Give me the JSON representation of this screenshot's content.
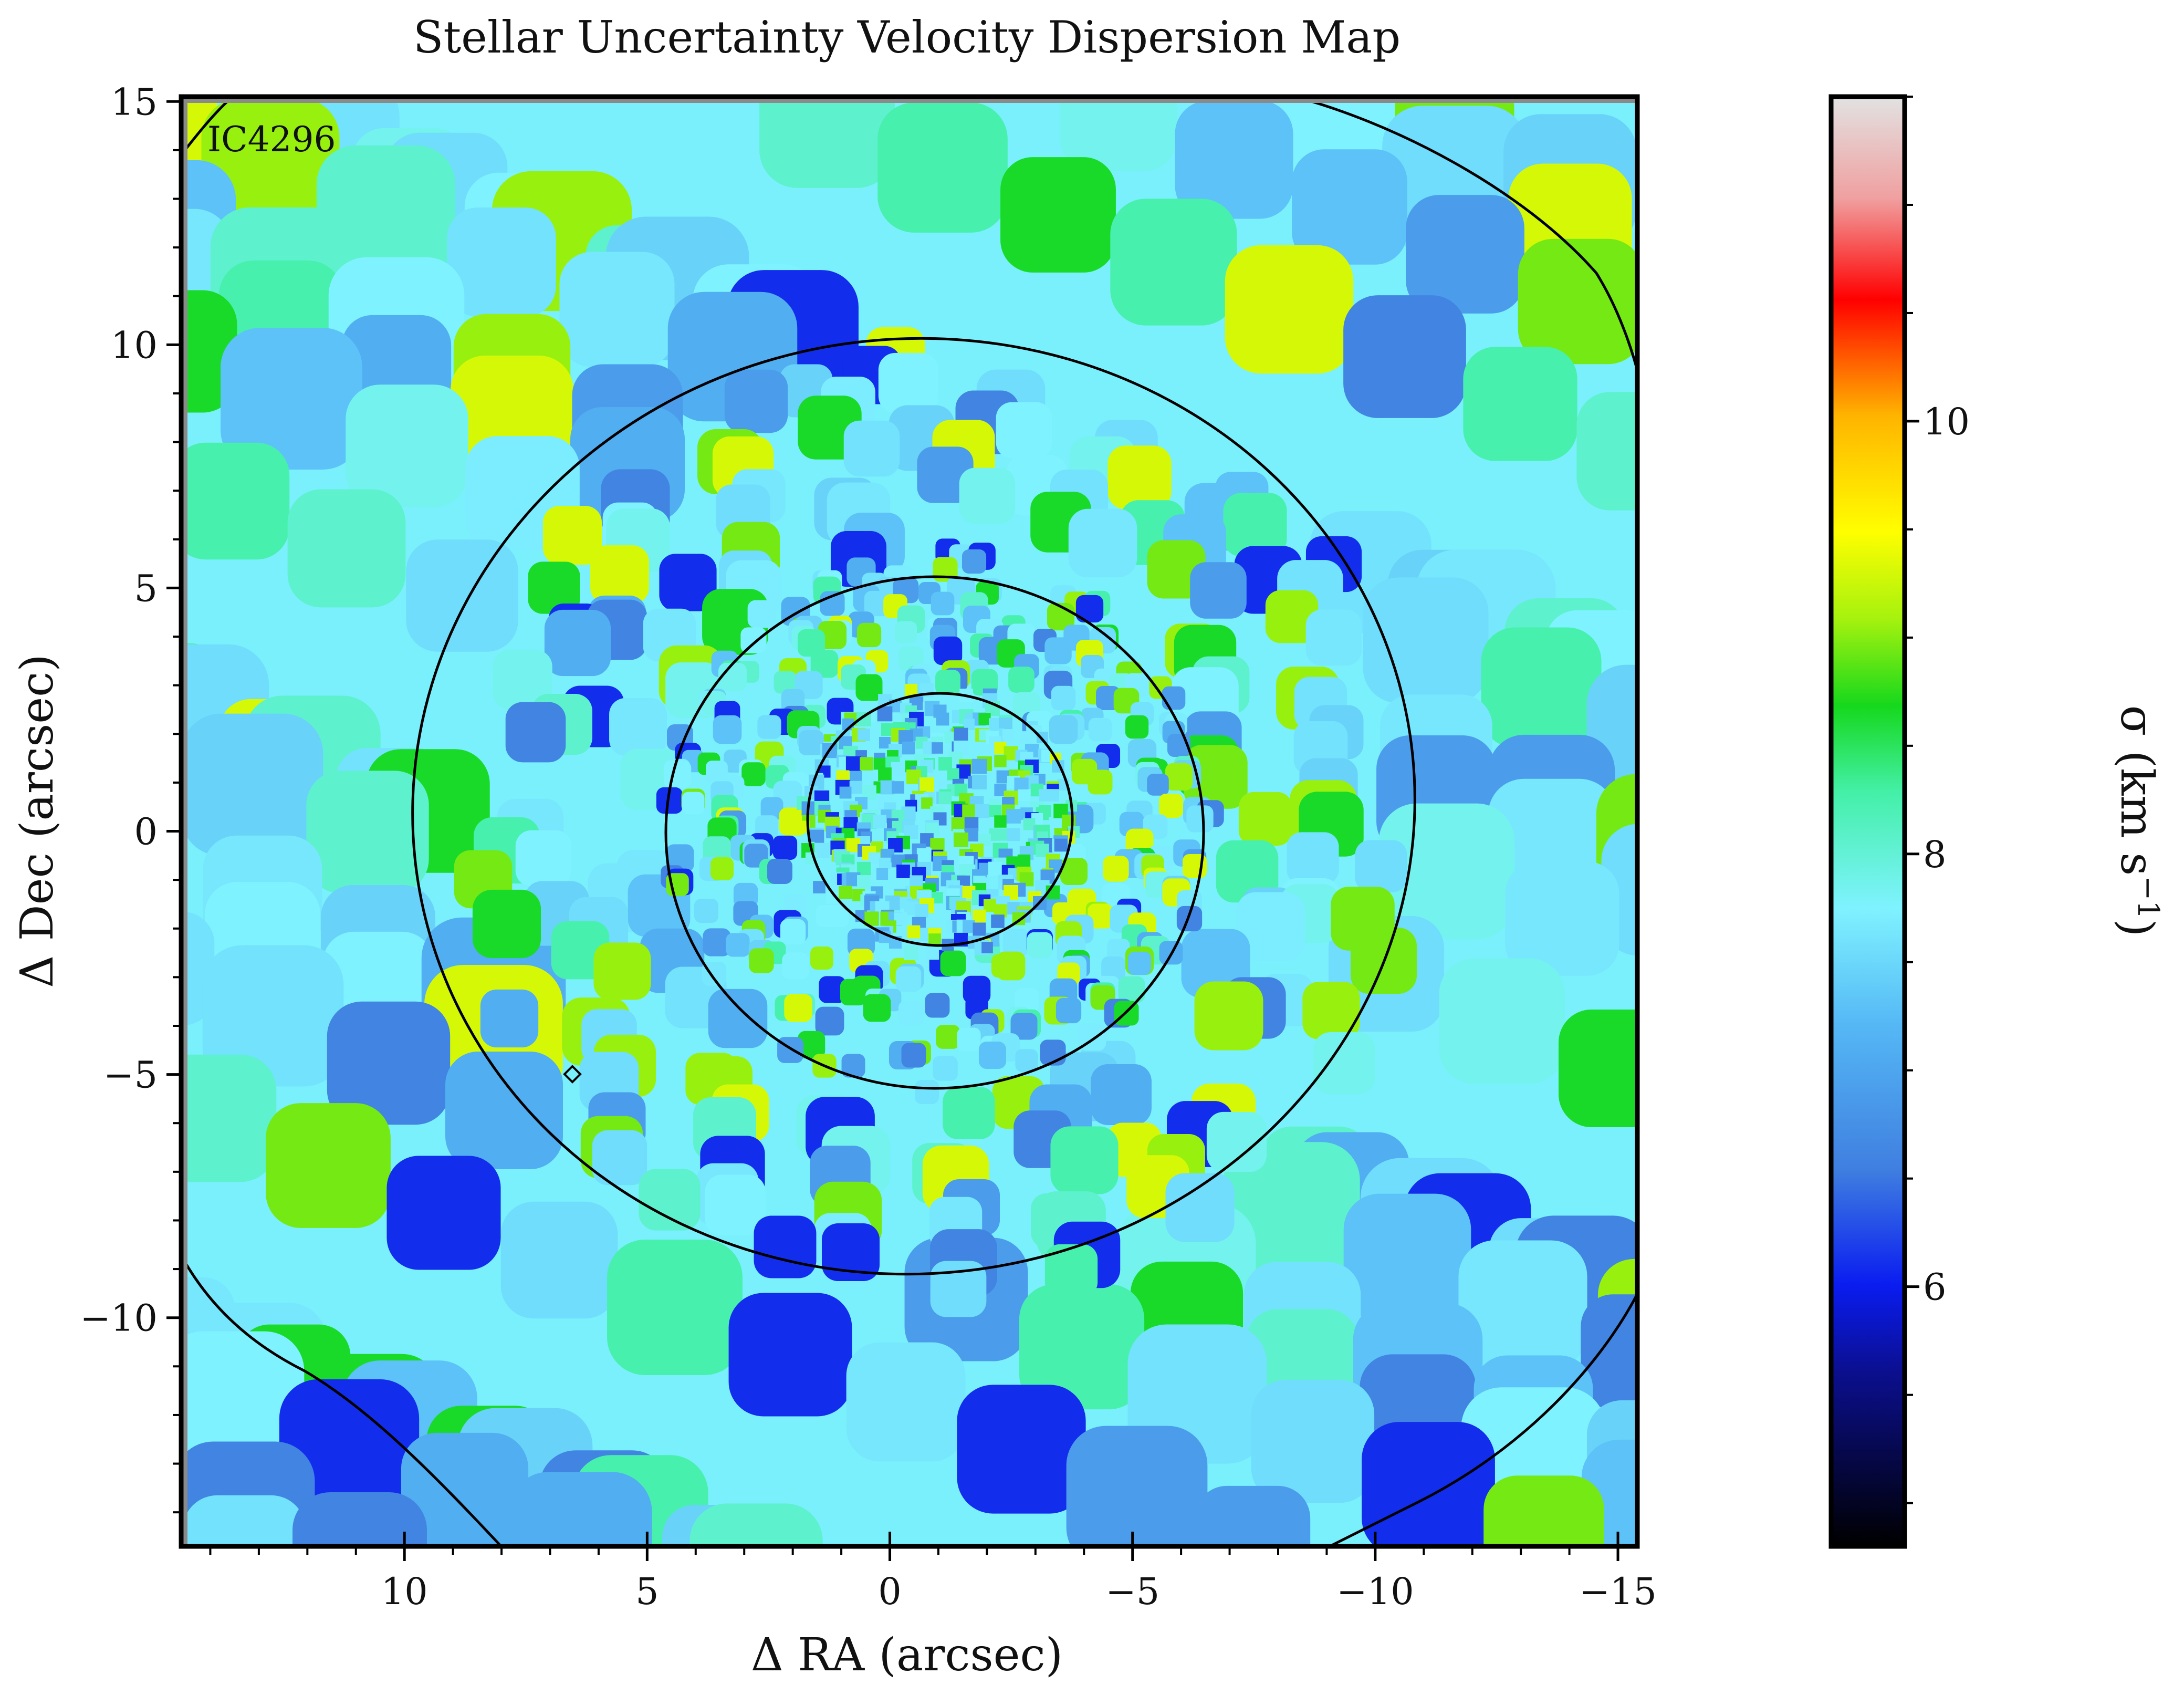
{
  "chart_data": {
    "type": "heatmap",
    "title": "Stellar Uncertainty Velocity Dispersion Map",
    "xlabel": "Δ RA (arcsec)",
    "ylabel": "Δ Dec (arcsec)",
    "object_label": "IC4296",
    "xlim": [
      14.6,
      -15.4
    ],
    "ylim": [
      -14.7,
      15.1
    ],
    "x_ticks": [
      10,
      5,
      0,
      -5,
      -10,
      -15
    ],
    "x_tick_labels": [
      "10",
      "5",
      "0",
      "−5",
      "−10",
      "−15"
    ],
    "y_ticks": [
      15,
      10,
      5,
      0,
      -5,
      -10
    ],
    "y_tick_labels": [
      "15",
      "10",
      "5",
      "0",
      "−5",
      "−10"
    ],
    "colorbar": {
      "label": "σ (km s⁻¹)",
      "label_parts": {
        "main": "σ (km s",
        "sup": "−1",
        "close": ")"
      },
      "range": [
        4.8,
        11.5
      ],
      "ticks": [
        6,
        8,
        10
      ],
      "tick_labels": [
        "6",
        "8",
        "10"
      ],
      "colormap": "gist_ncar-like",
      "stops": [
        [
          0.0,
          "#000000"
        ],
        [
          0.12,
          "#0b0f8e"
        ],
        [
          0.18,
          "#0a1cf0"
        ],
        [
          0.26,
          "#3f7fe0"
        ],
        [
          0.36,
          "#55b8f5"
        ],
        [
          0.44,
          "#7ff2ff"
        ],
        [
          0.52,
          "#44f0a8"
        ],
        [
          0.58,
          "#16d81c"
        ],
        [
          0.64,
          "#a6f20e"
        ],
        [
          0.7,
          "#fffe00"
        ],
        [
          0.78,
          "#ffb400"
        ],
        [
          0.86,
          "#ff0000"
        ],
        [
          0.93,
          "#f0a0a0"
        ],
        [
          1.0,
          "#e2e2e2"
        ]
      ]
    },
    "isophote_contours": "black elliptical isophotes centred near (ΔRA≈−1, ΔDec≈0)",
    "grid": false
  }
}
